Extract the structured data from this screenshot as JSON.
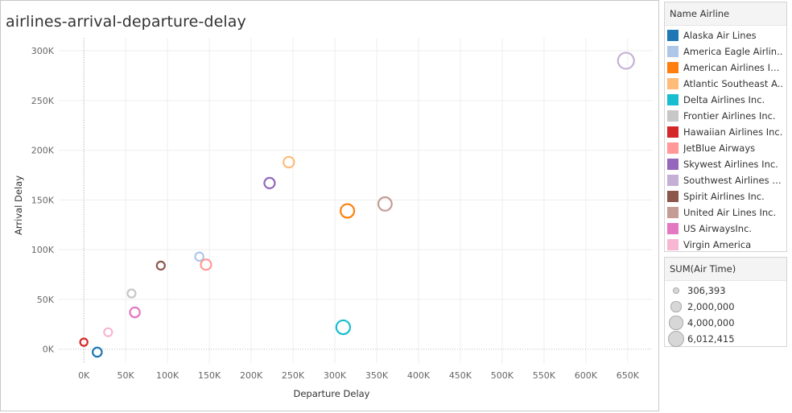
{
  "worksheet": {
    "title": "airlines-arrival-departure-delay"
  },
  "chart_data": {
    "type": "scatter",
    "title": "airlines-arrival-departure-delay",
    "xlabel": "Departure Delay",
    "ylabel": "Arrival Delay",
    "xlim": [
      -30000,
      680000
    ],
    "ylim": [
      -14000,
      313000
    ],
    "x_ticks": [
      0,
      50000,
      100000,
      150000,
      200000,
      250000,
      300000,
      350000,
      400000,
      450000,
      500000,
      550000,
      600000,
      650000
    ],
    "x_tick_labels": [
      "0K",
      "50K",
      "100K",
      "150K",
      "200K",
      "250K",
      "300K",
      "350K",
      "400K",
      "450K",
      "500K",
      "550K",
      "600K",
      "650K"
    ],
    "y_ticks": [
      0,
      50000,
      100000,
      150000,
      200000,
      250000,
      300000
    ],
    "y_tick_labels": [
      "0K",
      "50K",
      "100K",
      "150K",
      "200K",
      "250K",
      "300K"
    ],
    "grid": true,
    "legend": "right",
    "marker": "hollow-circle",
    "size_measure": "SUM(Air Time)",
    "points": [
      {
        "airline": "Alaska Air Lines",
        "x": 16000,
        "y": -3000,
        "air_time": 900000
      },
      {
        "airline": "America Eagle Airlines Inc.",
        "x": 138000,
        "y": 93000,
        "air_time": 600000
      },
      {
        "airline": "American Airlines Inc.",
        "x": 315000,
        "y": 139000,
        "air_time": 3600000
      },
      {
        "airline": "Atlantic Southeast Airlines",
        "x": 245000,
        "y": 188000,
        "air_time": 1600000
      },
      {
        "airline": "Delta Airlines Inc.",
        "x": 310000,
        "y": 22000,
        "air_time": 3800000
      },
      {
        "airline": "Frontier Airlines Inc.",
        "x": 57000,
        "y": 56000,
        "air_time": 500000
      },
      {
        "airline": "Hawaiian Airlines Inc.",
        "x": 0,
        "y": 7000,
        "air_time": 306393
      },
      {
        "airline": "JetBlue Airways",
        "x": 146000,
        "y": 85000,
        "air_time": 1500000
      },
      {
        "airline": "Skywest Airlines Inc.",
        "x": 222000,
        "y": 167000,
        "air_time": 1500000
      },
      {
        "airline": "Southwest Airlines Co.",
        "x": 648000,
        "y": 290000,
        "air_time": 6012415
      },
      {
        "airline": "Spirit Airlines Inc.",
        "x": 92000,
        "y": 84000,
        "air_time": 500000
      },
      {
        "airline": "United Air Lines Inc.",
        "x": 360000,
        "y": 146000,
        "air_time": 3500000
      },
      {
        "airline": "US AirwaysInc.",
        "x": 61000,
        "y": 37000,
        "air_time": 1200000
      },
      {
        "airline": "Virgin America",
        "x": 29000,
        "y": 17000,
        "air_time": 500000
      }
    ]
  },
  "legend_color": {
    "title": "Name Airline",
    "items": [
      {
        "label": "Alaska Air Lines",
        "color": "#1f77b4"
      },
      {
        "label": "America Eagle Airlin..",
        "color": "#aec7e8"
      },
      {
        "label": "American Airlines Inc.",
        "color": "#ff7f0e"
      },
      {
        "label": "Atlantic Southeast A..",
        "color": "#ffbb78"
      },
      {
        "label": "Delta Airlines Inc.",
        "color": "#17becf"
      },
      {
        "label": "Frontier Airlines Inc.",
        "color": "#c7c7c7"
      },
      {
        "label": "Hawaiian Airlines Inc.",
        "color": "#d62728"
      },
      {
        "label": "JetBlue Airways",
        "color": "#ff9896"
      },
      {
        "label": "Skywest Airlines Inc.",
        "color": "#9467bd"
      },
      {
        "label": "Southwest Airlines C..",
        "color": "#c5b0d5"
      },
      {
        "label": "Spirit Airlines Inc.",
        "color": "#8c564b"
      },
      {
        "label": "United Air Lines Inc.",
        "color": "#c49c94"
      },
      {
        "label": "US AirwaysInc.",
        "color": "#e377c2"
      },
      {
        "label": "Virgin America",
        "color": "#f7b6d2"
      }
    ]
  },
  "legend_size": {
    "title": "SUM(Air Time)",
    "items": [
      {
        "label": "306,393",
        "value": 306393
      },
      {
        "label": "2,000,000",
        "value": 2000000
      },
      {
        "label": "4,000,000",
        "value": 4000000
      },
      {
        "label": "6,012,415",
        "value": 6012415
      }
    ]
  }
}
